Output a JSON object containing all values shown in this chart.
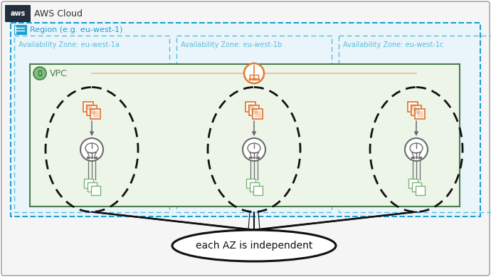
{
  "bg_color": "#ffffff",
  "aws_cloud_bg": "#f5f5f5",
  "aws_cloud_border": "#aaaaaa",
  "region_bg": "#eaf5fb",
  "region_border": "#1a9fd1",
  "az_border": "#5bbcd8",
  "vpc_bg": "#edf5e8",
  "vpc_border": "#4a7c4e",
  "ellipse_border": "#111111",
  "aws_logo_bg": "#232f3e",
  "region_label": "Region (e.g. eu-west-1)",
  "az_labels": [
    "Availability Zone: eu-west-1a",
    "Availability Zone: eu-west-1b",
    "Availability Zone: eu-west-1c"
  ],
  "vpc_label": "VPC",
  "bottom_label": "each AZ is independent",
  "ec2_color": "#e07b39",
  "nat_color": "#6b6b6b",
  "subnet_color": "#7ab57a",
  "nat_top_color": "#e07b39",
  "connect_line_color": "#e8b89a"
}
